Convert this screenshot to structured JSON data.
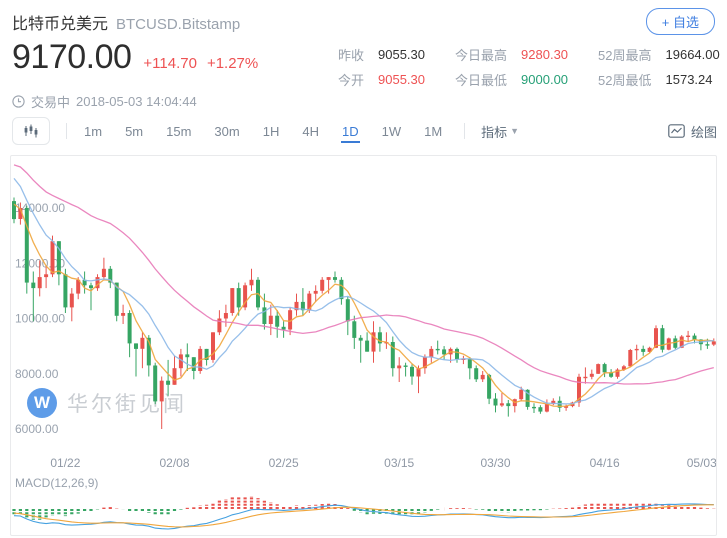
{
  "header": {
    "title": "比特币兑美元",
    "symbol": "BTCUSD.Bitstamp",
    "watchlist_button": "+ 自选"
  },
  "quote": {
    "price": "9170.00",
    "change": "+114.70",
    "change_pct": "+1.27%",
    "stats": [
      {
        "label": "昨收",
        "value": "9055.30",
        "color": "dark"
      },
      {
        "label": "今开",
        "value": "9055.30",
        "color": "red"
      },
      {
        "label": "今日最高",
        "value": "9280.30",
        "color": "red"
      },
      {
        "label": "今日最低",
        "value": "9000.00",
        "color": "green"
      },
      {
        "label": "52周最高",
        "value": "19664.00",
        "color": "dark"
      },
      {
        "label": "52周最低",
        "value": "1573.24",
        "color": "dark"
      }
    ]
  },
  "status": {
    "state": "交易中",
    "datetime": "2018-05-03 14:04:44"
  },
  "toolbar": {
    "timeframes": [
      "1m",
      "5m",
      "15m",
      "30m",
      "1H",
      "4H",
      "1D",
      "1W",
      "1M"
    ],
    "selected": "1D",
    "indicator_label": "指标",
    "draw_label": "绘图"
  },
  "watermark": {
    "logo_letter": "W",
    "text": "华尔街见闻"
  },
  "colors": {
    "accent": "#3d7de0",
    "up": "#e8534e",
    "down": "#36a563",
    "text_red": "#ee5253",
    "text_green": "#26a077"
  },
  "chart_data": {
    "type": "candlestick",
    "symbol": "BTCUSD.Bitstamp",
    "interval": "1D",
    "start_date": "2018-01-14",
    "y_ticks": [
      {
        "label": "14000.00",
        "value": 14000
      },
      {
        "label": "12000.00",
        "value": 12000
      },
      {
        "label": "10000.00",
        "value": 10000
      },
      {
        "label": "8000.00",
        "value": 8000
      },
      {
        "label": "6000.00",
        "value": 6000
      }
    ],
    "x_ticks": [
      {
        "label": "01/22",
        "index": 8
      },
      {
        "label": "02/08",
        "index": 25
      },
      {
        "label": "02/25",
        "index": 42
      },
      {
        "label": "03/15",
        "index": 60
      },
      {
        "label": "03/30",
        "index": 75
      },
      {
        "label": "04/16",
        "index": 92
      },
      {
        "label": "05/03",
        "index": 109
      }
    ],
    "up_color": "#e8534e",
    "down_color": "#36a563",
    "candles": [
      [
        14250,
        14380,
        13450,
        13600
      ],
      [
        13600,
        14200,
        13400,
        14000
      ],
      [
        14000,
        14080,
        10900,
        11300
      ],
      [
        11300,
        11700,
        9900,
        11100
      ],
      [
        11100,
        12100,
        10800,
        11500
      ],
      [
        11500,
        11900,
        11100,
        11600
      ],
      [
        11600,
        13000,
        11500,
        12800
      ],
      [
        12800,
        12800,
        11200,
        11600
      ],
      [
        11600,
        11800,
        10200,
        10400
      ],
      [
        10400,
        11100,
        9900,
        10900
      ],
      [
        10900,
        11500,
        10700,
        11400
      ],
      [
        11400,
        11700,
        10900,
        11200
      ],
      [
        11200,
        11300,
        10300,
        11100
      ],
      [
        11100,
        11600,
        11000,
        11500
      ],
      [
        11500,
        12200,
        11400,
        11800
      ],
      [
        11800,
        11900,
        11100,
        11300
      ],
      [
        11300,
        11300,
        9900,
        10100
      ],
      [
        10100,
        10500,
        9800,
        10200
      ],
      [
        10200,
        10300,
        8600,
        9100
      ],
      [
        9100,
        9100,
        7900,
        8900
      ],
      [
        8900,
        9500,
        8200,
        9300
      ],
      [
        9300,
        9400,
        7900,
        8300
      ],
      [
        8300,
        8400,
        6900,
        7000
      ],
      [
        7000,
        7900,
        6000,
        7750
      ],
      [
        7750,
        8500,
        7200,
        7600
      ],
      [
        7600,
        8650,
        7600,
        8200
      ],
      [
        8200,
        8900,
        7900,
        8700
      ],
      [
        8700,
        9100,
        8100,
        8600
      ],
      [
        8600,
        8600,
        7800,
        8100
      ],
      [
        8100,
        9000,
        8000,
        8900
      ],
      [
        8900,
        8900,
        8300,
        8500
      ],
      [
        8500,
        9500,
        8400,
        9500
      ],
      [
        9500,
        10300,
        9400,
        10000
      ],
      [
        10000,
        10500,
        9700,
        10200
      ],
      [
        10200,
        11100,
        10100,
        11100
      ],
      [
        11100,
        11300,
        10100,
        10400
      ],
      [
        10400,
        11300,
        10300,
        11200
      ],
      [
        11200,
        11800,
        11000,
        11400
      ],
      [
        11400,
        11500,
        10300,
        10400
      ],
      [
        10400,
        10900,
        9600,
        9800
      ],
      [
        9800,
        10500,
        9400,
        10100
      ],
      [
        10100,
        10300,
        9300,
        9700
      ],
      [
        9700,
        9900,
        9300,
        9600
      ],
      [
        9600,
        10400,
        9400,
        10300
      ],
      [
        10300,
        10900,
        10100,
        10600
      ],
      [
        10600,
        11100,
        10100,
        10300
      ],
      [
        10300,
        11000,
        10200,
        10900
      ],
      [
        10900,
        11200,
        10600,
        11000
      ],
      [
        11000,
        11500,
        10900,
        11400
      ],
      [
        11400,
        11500,
        10900,
        11500
      ],
      [
        11500,
        11700,
        11300,
        11400
      ],
      [
        11400,
        11500,
        10500,
        10700
      ],
      [
        10700,
        10800,
        9400,
        9900
      ],
      [
        9900,
        10100,
        8900,
        9300
      ],
      [
        9300,
        9400,
        8400,
        9200
      ],
      [
        9200,
        9500,
        8800,
        8800
      ],
      [
        8800,
        9900,
        8400,
        9500
      ],
      [
        9500,
        9700,
        8800,
        9100
      ],
      [
        9100,
        9500,
        8900,
        9150
      ],
      [
        9150,
        9350,
        7900,
        8200
      ],
      [
        8200,
        8600,
        7700,
        8300
      ],
      [
        8300,
        8400,
        7900,
        8250
      ],
      [
        8250,
        8350,
        7600,
        7900
      ],
      [
        7900,
        8300,
        7300,
        8200
      ],
      [
        8200,
        8700,
        8000,
        8600
      ],
      [
        8600,
        9000,
        8400,
        8900
      ],
      [
        8900,
        9200,
        8700,
        8880
      ],
      [
        8880,
        9000,
        8500,
        8700
      ],
      [
        8700,
        8950,
        8400,
        8900
      ],
      [
        8900,
        8950,
        8400,
        8530
      ],
      [
        8530,
        8650,
        8350,
        8550
      ],
      [
        8550,
        8600,
        7800,
        8200
      ],
      [
        8200,
        8300,
        7700,
        7800
      ],
      [
        7800,
        8100,
        7700,
        7960
      ],
      [
        7960,
        8000,
        6900,
        7100
      ],
      [
        7100,
        7300,
        6600,
        6850
      ],
      [
        6850,
        7300,
        6800,
        6930
      ],
      [
        6930,
        7050,
        6450,
        6830
      ],
      [
        6830,
        7100,
        6600,
        7080
      ],
      [
        7080,
        7530,
        7000,
        7420
      ],
      [
        7420,
        7440,
        6700,
        6800
      ],
      [
        6800,
        6930,
        6580,
        6790
      ],
      [
        6790,
        6860,
        6550,
        6630
      ],
      [
        6630,
        7070,
        6600,
        6900
      ],
      [
        6900,
        7110,
        6860,
        7020
      ],
      [
        7020,
        7180,
        6620,
        6770
      ],
      [
        6770,
        6880,
        6660,
        6830
      ],
      [
        6830,
        6990,
        6790,
        6960
      ],
      [
        6960,
        8000,
        6800,
        7890
      ],
      [
        7890,
        8230,
        7640,
        7890
      ],
      [
        7890,
        8150,
        7800,
        8000
      ],
      [
        8000,
        8370,
        7990,
        8350
      ],
      [
        8350,
        8400,
        7880,
        8050
      ],
      [
        8050,
        8170,
        7850,
        7890
      ],
      [
        7890,
        8200,
        7820,
        8150
      ],
      [
        8150,
        8320,
        8100,
        8270
      ],
      [
        8270,
        8900,
        8250,
        8860
      ],
      [
        8860,
        9050,
        8500,
        8900
      ],
      [
        8900,
        9020,
        8650,
        8790
      ],
      [
        8790,
        8980,
        8740,
        8940
      ],
      [
        8940,
        9750,
        8930,
        9650
      ],
      [
        9650,
        9770,
        8770,
        8870
      ],
      [
        8870,
        9310,
        8850,
        9280
      ],
      [
        9280,
        9380,
        8890,
        8940
      ],
      [
        8940,
        9400,
        8930,
        9350
      ],
      [
        9350,
        9550,
        9150,
        9380
      ],
      [
        9380,
        9460,
        9100,
        9240
      ],
      [
        9240,
        9250,
        8850,
        9070
      ],
      [
        9070,
        9270,
        8900,
        9055.3
      ],
      [
        9055.3,
        9280.3,
        9000,
        9170
      ]
    ],
    "ma": [
      {
        "name": "MA5",
        "period": 5,
        "color": "#f0a63d"
      },
      {
        "name": "MA10",
        "period": 10,
        "color": "#8cb8e8"
      },
      {
        "name": "MA30",
        "period": 30,
        "color": "#e87ab8"
      }
    ],
    "ma_seed_closes": [
      16700,
      16300,
      17800,
      18900,
      18200,
      17600,
      16600,
      15000,
      13800,
      14100,
      14400,
      15800,
      15600,
      14700,
      14300,
      14000,
      14900,
      15400,
      15200,
      16400,
      17100,
      16900,
      16300,
      15900,
      15600,
      15300,
      14900,
      14400,
      14000,
      13800
    ],
    "indicator": {
      "name": "MACD",
      "params": "(12,26,9)",
      "label": "MACD(12,26,9)",
      "dif_color": "#45a1e0",
      "dea_color": "#f0a63d",
      "up_color": "#e8534e",
      "down_color": "#36a563"
    }
  }
}
